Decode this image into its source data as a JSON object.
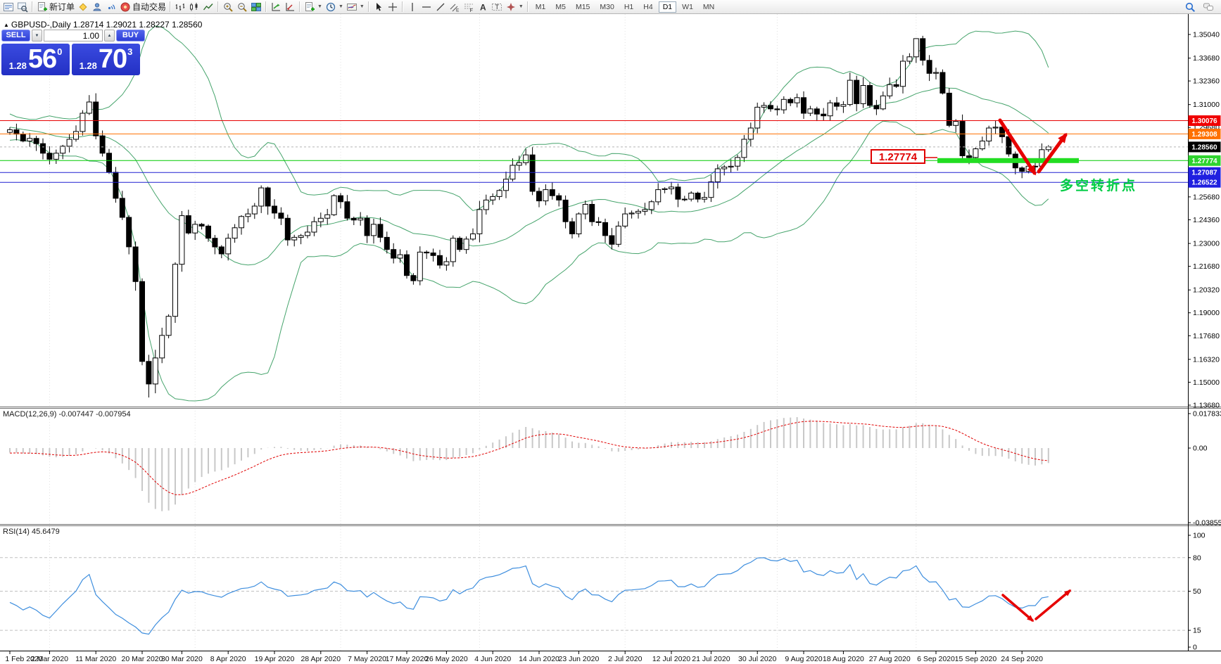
{
  "toolbar": {
    "groups": [
      {
        "items": [
          {
            "icon": "chart-list",
            "name": "charts-list-button"
          },
          {
            "icon": "preview",
            "name": "market-watch-button"
          }
        ]
      },
      {
        "items": [
          {
            "icon": "new-order",
            "name": "new-order-button",
            "label": "新订单"
          },
          {
            "icon": "alert",
            "name": "alerts-button"
          },
          {
            "icon": "mail",
            "name": "mailbox-button"
          },
          {
            "icon": "signal",
            "name": "signals-button"
          },
          {
            "icon": "autotrade",
            "name": "autotrading-button",
            "label": "自动交易"
          }
        ]
      },
      {
        "items": [
          {
            "icon": "bars",
            "name": "bar-chart-button"
          },
          {
            "icon": "candles",
            "name": "candlestick-chart-button"
          },
          {
            "icon": "linechart",
            "name": "line-chart-button"
          }
        ]
      },
      {
        "items": [
          {
            "icon": "zoom-in",
            "name": "zoom-in-button"
          },
          {
            "icon": "zoom-out",
            "name": "zoom-out-button"
          },
          {
            "icon": "tiles",
            "name": "tile-windows-button"
          }
        ]
      },
      {
        "items": [
          {
            "icon": "ind-green",
            "name": "indicators-button"
          },
          {
            "icon": "ind-red",
            "name": "objects-button"
          }
        ]
      },
      {
        "items": [
          {
            "icon": "template",
            "name": "templates-button",
            "caret": true
          },
          {
            "icon": "clock",
            "name": "periods-button",
            "caret": true
          },
          {
            "icon": "chartimg",
            "name": "chart-template-button",
            "caret": true
          }
        ]
      },
      {
        "items": [
          {
            "icon": "cursor",
            "name": "cursor-button"
          },
          {
            "icon": "crosshair",
            "name": "crosshair-button"
          }
        ]
      },
      {
        "items": [
          {
            "icon": "vline",
            "name": "vertical-line-button"
          },
          {
            "icon": "hline",
            "name": "horizontal-line-button"
          },
          {
            "icon": "tline",
            "name": "trendline-button"
          },
          {
            "icon": "channel",
            "name": "equidistant-channel-button"
          },
          {
            "icon": "fibo",
            "name": "fibonacci-button"
          },
          {
            "icon": "text",
            "name": "text-button"
          },
          {
            "icon": "label",
            "name": "text-label-button"
          },
          {
            "icon": "arrows",
            "name": "arrows-button",
            "caret": true
          }
        ]
      }
    ],
    "timeframes": [
      {
        "label": "M1"
      },
      {
        "label": "M5"
      },
      {
        "label": "M15"
      },
      {
        "label": "M30"
      },
      {
        "label": "H1"
      },
      {
        "label": "H4"
      },
      {
        "label": "D1",
        "active": true
      },
      {
        "label": "W1"
      },
      {
        "label": "MN"
      }
    ],
    "right": [
      {
        "icon": "search",
        "name": "search-button"
      },
      {
        "icon": "chat",
        "name": "community-button"
      }
    ]
  },
  "chart": {
    "marker_glyph": "▲",
    "title_text": "GBPUSD-,Daily  1.28714 1.29021 1.28227 1.28560",
    "macd_label": "MACD(12,26,9) -0.007447 -0.007954",
    "rsi_label": "RSI(14) 45.6479"
  },
  "trade_widget": {
    "sell_label": "SELL",
    "buy_label": "BUY",
    "volume": "1.00",
    "spin_down_glyph": "▼",
    "spin_up_glyph": "▲",
    "sell_price_small": "1.28",
    "sell_price_big": "56",
    "sell_price_sup": "0",
    "buy_price_small": "1.28",
    "buy_price_big": "70",
    "buy_price_sup": "3"
  },
  "price_axis": {
    "ticks": [
      "1.35040",
      "1.33680",
      "1.32360",
      "1.31000",
      "1.29680",
      "1.25680",
      "1.24360",
      "1.23000",
      "1.21680",
      "1.20320",
      "1.19000",
      "1.17680",
      "1.16320",
      "1.15000",
      "1.13680"
    ],
    "badges": [
      {
        "value": "1.30076",
        "bg": "#f00000",
        "fg": "#ffffff"
      },
      {
        "value": "1.29308",
        "bg": "#ff7000",
        "fg": "#ffffff"
      },
      {
        "value": "1.28560",
        "bg": "#000000",
        "fg": "#ffffff"
      },
      {
        "value": "1.27774",
        "bg": "#2fd42f",
        "fg": "#ffffff"
      },
      {
        "value": "1.27087",
        "bg": "#2020e0",
        "fg": "#ffffff"
      },
      {
        "value": "1.26522",
        "bg": "#2020e0",
        "fg": "#ffffff"
      }
    ]
  },
  "chart_data": {
    "type": "candlestick",
    "symbol_period": "GBPUSD-,Daily",
    "ohlc_current": {
      "open": "1.28714",
      "high": "1.29021",
      "low": "1.28227",
      "close": "1.28560"
    },
    "y_axis_range": [
      1.1368,
      1.3504
    ],
    "x_tick_labels": [
      "1 Feb 2020",
      "2 Mar 2020",
      "11 Mar 2020",
      "20 Mar 2020",
      "30 Mar 2020",
      "8 Apr 2020",
      "19 Apr 2020",
      "28 Apr 2020",
      "7 May 2020",
      "17 May 2020",
      "26 May 2020",
      "4 Jun 2020",
      "14 Jun 2020",
      "23 Jun 2020",
      "2 Jul 2020",
      "12 Jul 2020",
      "21 Jul 2020",
      "30 Jul 2020",
      "9 Aug 2020",
      "18 Aug 2020",
      "27 Aug 2020",
      "6 Sep 2020",
      "15 Sep 2020",
      "24 Sep 2020"
    ],
    "x_tick_bar_indices": [
      0,
      6,
      13,
      20,
      26,
      33,
      40,
      47,
      54,
      60,
      66,
      73,
      80,
      86,
      93,
      100,
      106,
      113,
      120,
      126,
      133,
      140,
      146,
      153
    ],
    "month_separator_bar_indices": [
      6,
      28,
      50,
      71,
      93,
      116,
      137
    ],
    "warmup_closes": [
      1.306,
      1.3035,
      1.301,
      1.2985,
      1.2965,
      1.2995,
      1.3015,
      1.2975,
      1.2945,
      1.2925,
      1.2955,
      1.2975,
      1.2935,
      1.2905,
      1.2925,
      1.2955,
      1.2985,
      1.2965,
      1.294
    ],
    "closes": [
      1.2955,
      1.293,
      1.289,
      1.2905,
      1.2875,
      1.282,
      1.2785,
      1.282,
      1.286,
      1.29,
      1.2945,
      1.305,
      1.3115,
      1.292,
      1.282,
      1.271,
      1.256,
      1.245,
      1.228,
      1.208,
      1.162,
      1.149,
      1.164,
      1.177,
      1.188,
      1.218,
      1.246,
      1.236,
      1.241,
      1.24,
      1.233,
      1.228,
      1.224,
      1.233,
      1.239,
      1.2455,
      1.247,
      1.2515,
      1.262,
      1.2515,
      1.2475,
      1.2445,
      1.232,
      1.2335,
      1.2345,
      1.2365,
      1.2425,
      1.2445,
      1.2465,
      1.2575,
      1.254,
      1.2445,
      1.2435,
      1.2445,
      1.2345,
      1.241,
      1.2335,
      1.2265,
      1.2215,
      1.2235,
      1.2115,
      1.2085,
      1.225,
      1.2245,
      1.223,
      1.2175,
      1.2195,
      1.233,
      1.2265,
      1.2325,
      1.2355,
      1.2495,
      1.255,
      1.257,
      1.2605,
      1.267,
      1.275,
      1.2765,
      1.281,
      1.26,
      1.2545,
      1.261,
      1.2575,
      1.255,
      1.2425,
      1.2355,
      1.247,
      1.2525,
      1.2425,
      1.242,
      1.2345,
      1.2295,
      1.24,
      1.247,
      1.2475,
      1.2485,
      1.2495,
      1.254,
      1.261,
      1.2615,
      1.2625,
      1.2555,
      1.2555,
      1.259,
      1.2555,
      1.2565,
      1.2655,
      1.273,
      1.274,
      1.2745,
      1.2795,
      1.29,
      1.2965,
      1.3085,
      1.3095,
      1.3075,
      1.307,
      1.313,
      1.311,
      1.314,
      1.305,
      1.3075,
      1.3045,
      1.3035,
      1.311,
      1.309,
      1.31,
      1.324,
      1.3105,
      1.321,
      1.3095,
      1.3075,
      1.315,
      1.3215,
      1.3205,
      1.335,
      1.3375,
      1.348,
      1.3355,
      1.328,
      1.3285,
      1.3166,
      1.298,
      1.3003,
      1.2805,
      1.2795,
      1.2845,
      1.289,
      1.2965,
      1.297,
      1.2915,
      1.2815,
      1.2735,
      1.2715,
      1.2745,
      1.2745,
      1.284,
      1.2856
    ],
    "extremes": [
      {
        "index": 21,
        "side": "low",
        "price": 1.1412
      },
      {
        "index": 78,
        "side": "high",
        "price": 1.2845
      },
      {
        "index": 137,
        "side": "high",
        "price": 1.3482
      },
      {
        "index": 153,
        "side": "low",
        "price": 1.2676
      }
    ],
    "levels": [
      {
        "price": 1.30076,
        "color": "#e80000",
        "style": "solid"
      },
      {
        "price": 1.29308,
        "color": "#ff7000",
        "style": "solid"
      },
      {
        "price": 1.2856,
        "color": "#b4b4b4",
        "style": "dash"
      },
      {
        "price": 1.27774,
        "color": "#00cc00",
        "style": "solid"
      },
      {
        "price": 1.27087,
        "color": "#2020d0",
        "style": "solid"
      },
      {
        "price": 1.26522,
        "color": "#2020d0",
        "style": "solid"
      }
    ],
    "indicators": {
      "bollinger": {
        "period": 20,
        "deviation": 2,
        "color": "#46a46c"
      },
      "macd": {
        "params": [
          12,
          26,
          9
        ],
        "main_value": "-0.007447",
        "signal_value": "-0.007954",
        "axis": [
          "0.017833",
          "0.00",
          "-0.038559"
        ],
        "range": [
          -0.038559,
          0.017833
        ],
        "histogram_color": "#c8c8c8",
        "signal_color": "#e00000"
      },
      "rsi": {
        "period": 14,
        "value": "45.6479",
        "axis": [
          "100",
          "80",
          "50",
          "15",
          "0"
        ],
        "level_lines": [
          80,
          50,
          15
        ],
        "line_color": "#3e8ede"
      }
    },
    "annotations": {
      "support_bar": {
        "price": "1.27774",
        "color": "#22dd22"
      },
      "price_callout": {
        "text": "1.27774",
        "color": "#e00000"
      },
      "note_text": {
        "text": "多空转折点",
        "color": "#00cc44"
      },
      "arrow_color": "#e60000"
    }
  }
}
